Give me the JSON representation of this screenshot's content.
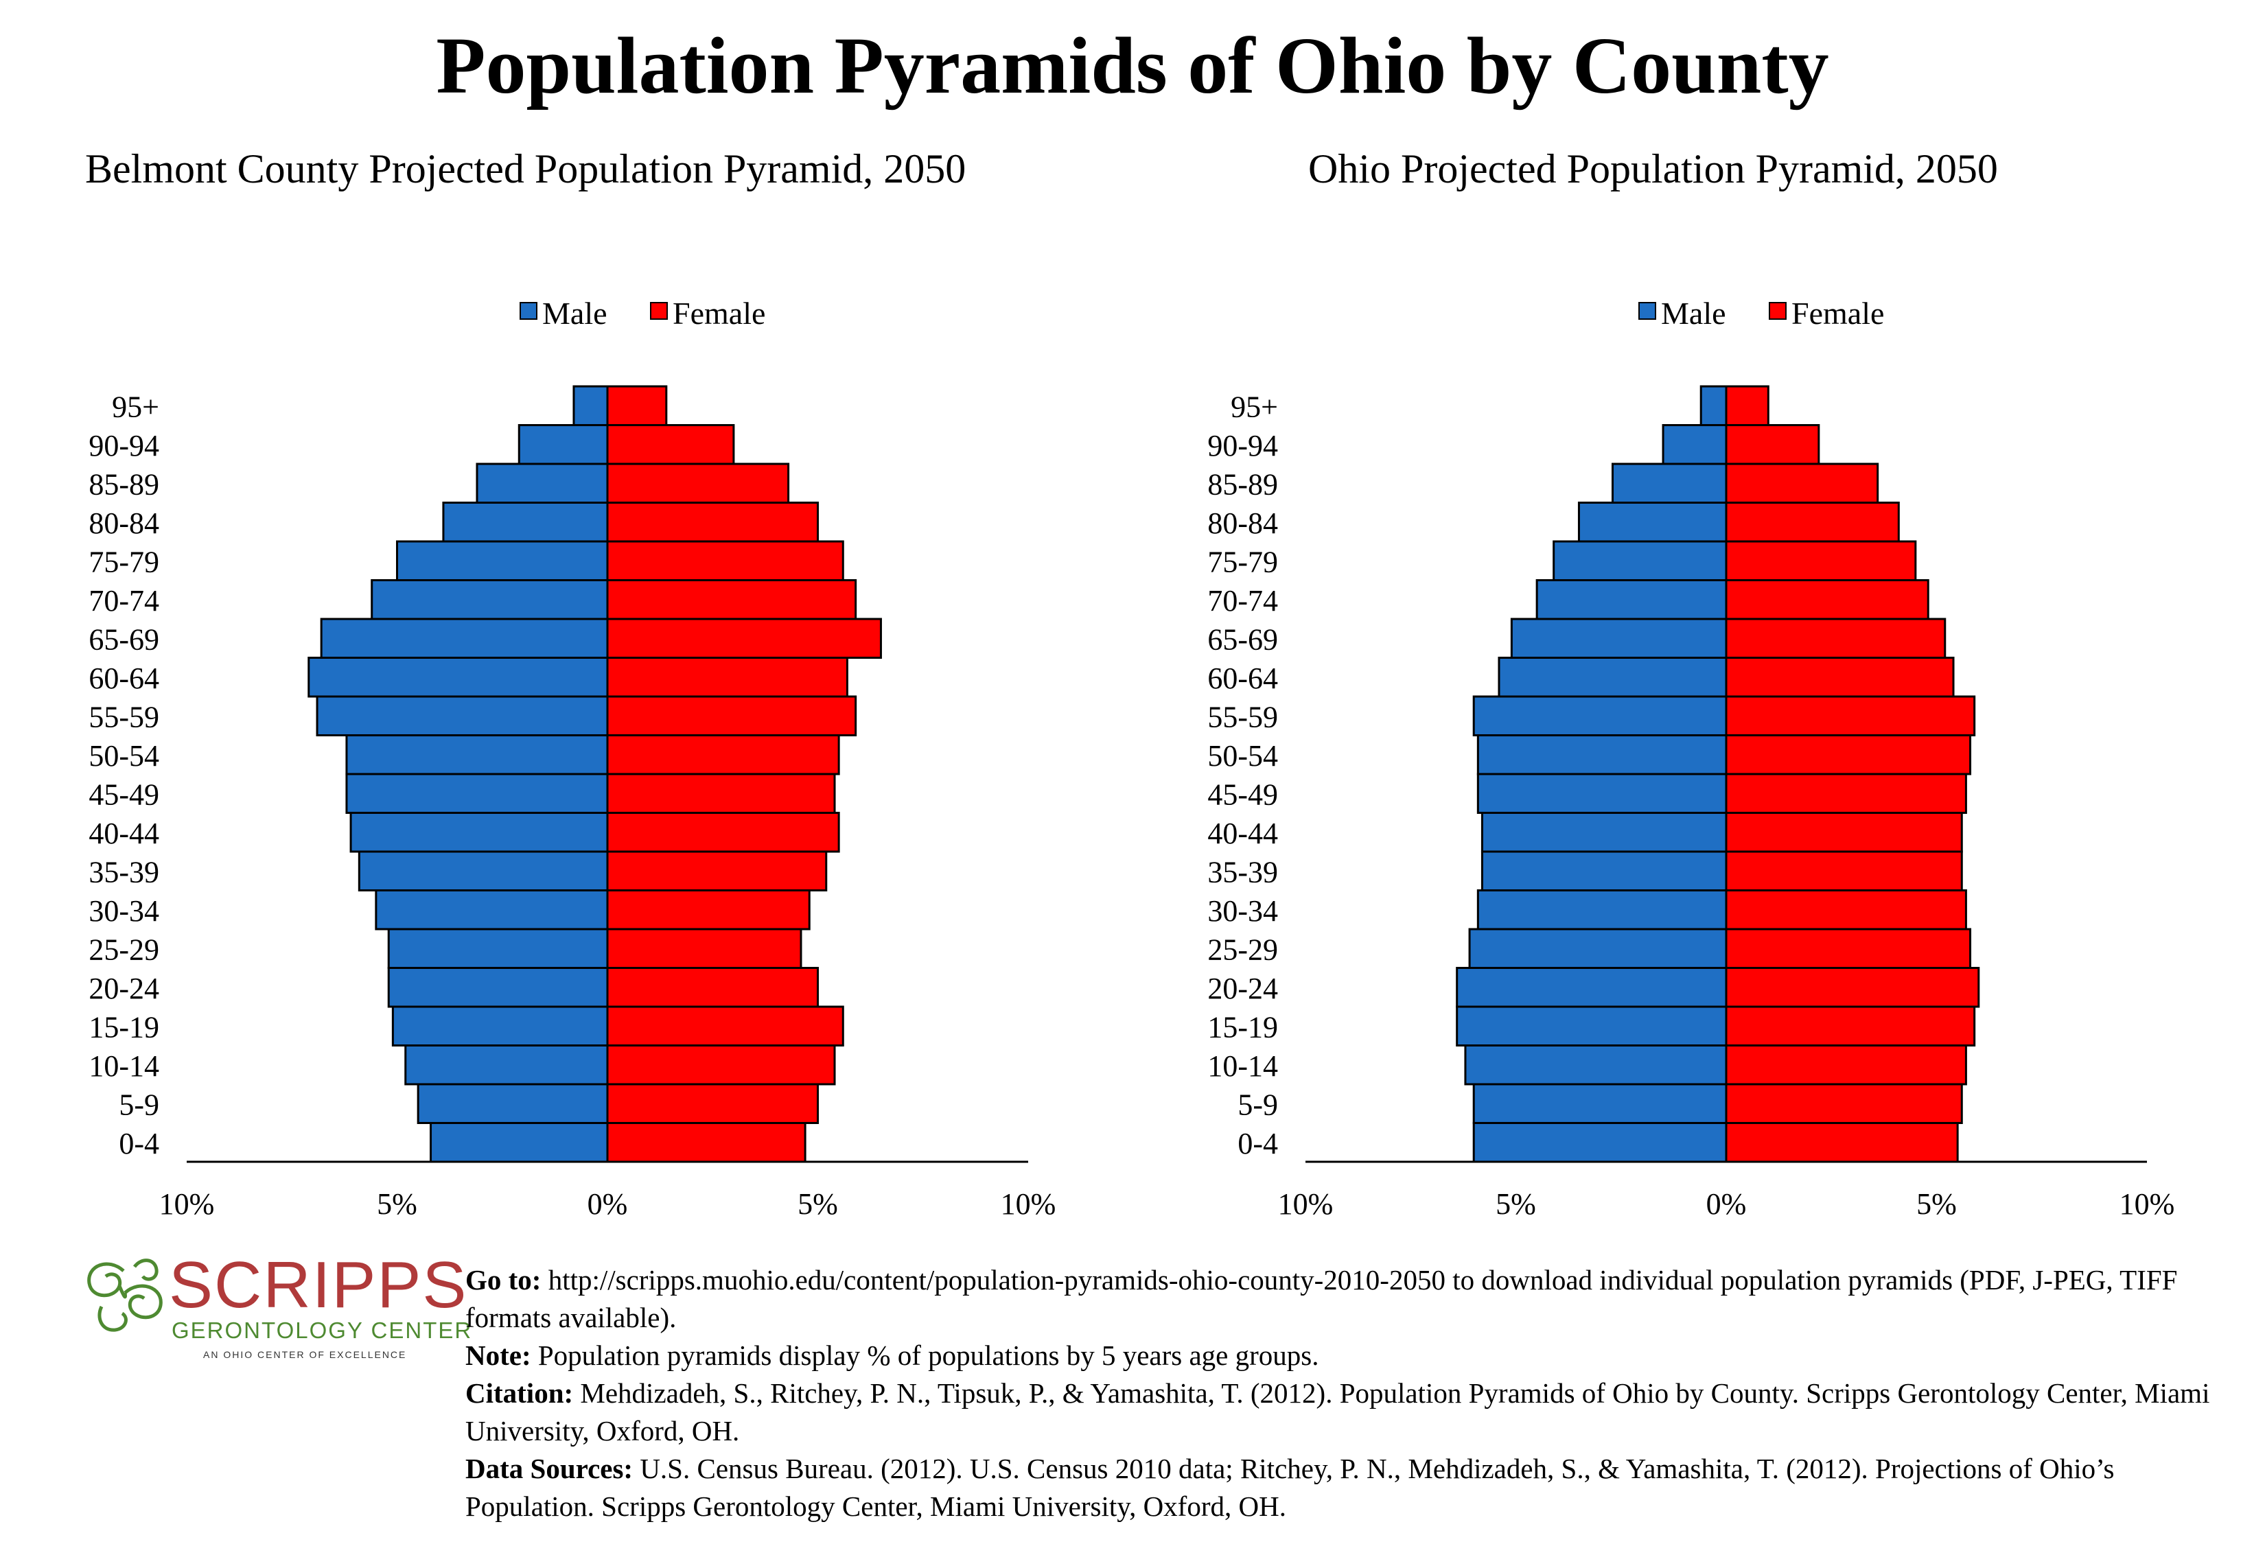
{
  "title": "Population Pyramids of Ohio by County",
  "chart_data": [
    {
      "type": "bar",
      "orientation": "horizontal-pyramid",
      "title": "Belmont County Projected Population Pyramid, 2050",
      "categories": [
        "95+",
        "90-94",
        "85-89",
        "80-84",
        "75-79",
        "70-74",
        "65-69",
        "60-64",
        "55-59",
        "50-54",
        "45-49",
        "40-44",
        "35-39",
        "30-34",
        "25-29",
        "20-24",
        "15-19",
        "10-14",
        "5-9",
        "0-4"
      ],
      "series": [
        {
          "name": "Male",
          "color": "#1f6fc4",
          "values": [
            0.8,
            2.1,
            3.1,
            3.9,
            5.0,
            5.6,
            6.8,
            7.1,
            6.9,
            6.2,
            6.2,
            6.1,
            5.9,
            5.5,
            5.2,
            5.2,
            5.1,
            4.8,
            4.5,
            4.2
          ]
        },
        {
          "name": "Female",
          "color": "#ff0000",
          "values": [
            1.4,
            3.0,
            4.3,
            5.0,
            5.6,
            5.9,
            6.5,
            5.7,
            5.9,
            5.5,
            5.4,
            5.5,
            5.2,
            4.8,
            4.6,
            5.0,
            5.6,
            5.4,
            5.0,
            4.7
          ]
        }
      ],
      "xlim": [
        -10,
        10
      ],
      "xticks": [
        "10%",
        "5%",
        "0%",
        "5%",
        "10%"
      ],
      "legend": "top-center"
    },
    {
      "type": "bar",
      "orientation": "horizontal-pyramid",
      "title": "Ohio Projected Population Pyramid, 2050",
      "categories": [
        "95+",
        "90-94",
        "85-89",
        "80-84",
        "75-79",
        "70-74",
        "65-69",
        "60-64",
        "55-59",
        "50-54",
        "45-49",
        "40-44",
        "35-39",
        "30-34",
        "25-29",
        "20-24",
        "15-19",
        "10-14",
        "5-9",
        "0-4"
      ],
      "series": [
        {
          "name": "Male",
          "color": "#1f6fc4",
          "values": [
            0.6,
            1.5,
            2.7,
            3.5,
            4.1,
            4.5,
            5.1,
            5.4,
            6.0,
            5.9,
            5.9,
            5.8,
            5.8,
            5.9,
            6.1,
            6.4,
            6.4,
            6.2,
            6.0,
            6.0
          ]
        },
        {
          "name": "Female",
          "color": "#ff0000",
          "values": [
            1.0,
            2.2,
            3.6,
            4.1,
            4.5,
            4.8,
            5.2,
            5.4,
            5.9,
            5.8,
            5.7,
            5.6,
            5.6,
            5.7,
            5.8,
            6.0,
            5.9,
            5.7,
            5.6,
            5.5
          ]
        }
      ],
      "xlim": [
        -10,
        10
      ],
      "xticks": [
        "10%",
        "5%",
        "0%",
        "5%",
        "10%"
      ],
      "legend": "top-center"
    }
  ],
  "logo": {
    "word": "SCRIPPS",
    "sub": "GERONTOLOGY CENTER",
    "tag": "AN OHIO CENTER OF EXCELLENCE",
    "red": "#b03a3a",
    "green": "#4e8a31"
  },
  "footnotes": {
    "goto_label": "Go to:",
    "goto_text": " http://scripps.muohio.edu/content/population-pyramids-ohio-county-2010-2050 to download individual population pyramids (PDF, J-PEG, TIFF formats available).",
    "note_label": "Note:",
    "note_text": " Population pyramids display % of populations by 5 years age groups.",
    "citation_label": "Citation:",
    "citation_text": " Mehdizadeh, S., Ritchey, P. N., Tipsuk, P., & Yamashita, T. (2012). Population Pyramids of Ohio by County. Scripps Gerontology Center, Miami University, Oxford, OH.",
    "sources_label": "Data Sources:",
    "sources_text": " U.S. Census Bureau. (2012). U.S. Census 2010 data; Ritchey, P. N., Mehdizadeh, S., & Yamashita, T. (2012). Projections of Ohio’s Population. Scripps Gerontology Center, Miami University, Oxford, OH."
  }
}
